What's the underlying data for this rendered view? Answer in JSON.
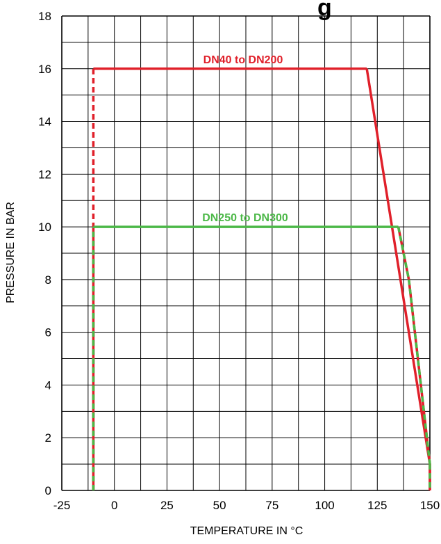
{
  "chart_data": {
    "type": "line",
    "title_fragment": "g",
    "xlabel": "TEMPERATURE  IN °C",
    "ylabel": "PRESSURE  IN BAR",
    "xlim": [
      -25,
      150
    ],
    "ylim": [
      0,
      18
    ],
    "x_ticks": [
      "-25",
      "0",
      "25",
      "50",
      "75",
      "100",
      "125",
      "150"
    ],
    "y_ticks": [
      "0",
      "2",
      "4",
      "6",
      "8",
      "10",
      "12",
      "14",
      "16",
      "18"
    ],
    "grid": true,
    "series": [
      {
        "name": "DN40  to DN200",
        "color": "#e0202a",
        "points": [
          [
            -10,
            0
          ],
          [
            -10,
            16
          ],
          [
            120,
            16
          ],
          [
            150,
            1
          ],
          [
            150,
            0
          ]
        ],
        "dashed_segments": [
          0
        ]
      },
      {
        "name": "DN250  to DN300",
        "color": "#4cb848",
        "points": [
          [
            -10,
            0
          ],
          [
            -10,
            10
          ],
          [
            135,
            10
          ],
          [
            140,
            8
          ],
          [
            150,
            1
          ],
          [
            150,
            0
          ]
        ],
        "dashed_segments": [
          0,
          2,
          3,
          4
        ]
      }
    ]
  }
}
